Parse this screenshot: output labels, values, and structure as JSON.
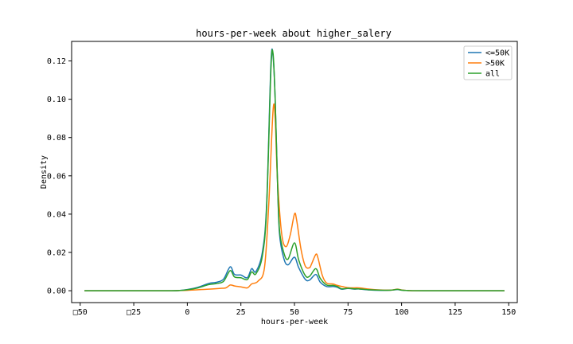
{
  "chart_data": {
    "type": "line",
    "title": "hours-per-week about higher_salery",
    "xlabel": "hours-per-week",
    "ylabel": "Density",
    "xlim": [
      -54,
      154
    ],
    "ylim": [
      -0.0062,
      0.1302
    ],
    "x_ticks": [
      -50,
      -25,
      0,
      25,
      50,
      75,
      100,
      125,
      150
    ],
    "x_tick_labels": [
      "□50",
      "□25",
      "0",
      "25",
      "50",
      "75",
      "100",
      "125",
      "150"
    ],
    "y_ticks": [
      0.0,
      0.02,
      0.04,
      0.06,
      0.08,
      0.1,
      0.12
    ],
    "y_tick_labels": [
      "0.00",
      "0.02",
      "0.04",
      "0.06",
      "0.08",
      "0.10",
      "0.12"
    ],
    "grid": false,
    "legend_position": "top-right",
    "series": [
      {
        "name": "<=50K",
        "color": "#1f77b4",
        "points": [
          [
            -48,
            0
          ],
          [
            -10,
            0
          ],
          [
            -4,
            0.0001
          ],
          [
            0,
            0.0006
          ],
          [
            5,
            0.0018
          ],
          [
            10,
            0.0038
          ],
          [
            14,
            0.0045
          ],
          [
            17,
            0.0062
          ],
          [
            20,
            0.0125
          ],
          [
            22,
            0.0085
          ],
          [
            25,
            0.0082
          ],
          [
            28,
            0.0068
          ],
          [
            30,
            0.0115
          ],
          [
            32,
            0.01
          ],
          [
            35,
            0.02
          ],
          [
            37,
            0.045
          ],
          [
            39,
            0.118
          ],
          [
            40,
            0.1225
          ],
          [
            41,
            0.1
          ],
          [
            42,
            0.06
          ],
          [
            43,
            0.03
          ],
          [
            45,
            0.017
          ],
          [
            47,
            0.0135
          ],
          [
            50,
            0.0175
          ],
          [
            52,
            0.012
          ],
          [
            55,
            0.006
          ],
          [
            57,
            0.0055
          ],
          [
            60,
            0.0085
          ],
          [
            62,
            0.0045
          ],
          [
            65,
            0.0022
          ],
          [
            68,
            0.0022
          ],
          [
            70,
            0.0018
          ],
          [
            72,
            0.0008
          ],
          [
            75,
            0.0012
          ],
          [
            78,
            0.0008
          ],
          [
            80,
            0.0009
          ],
          [
            85,
            0.0004
          ],
          [
            90,
            0.0002
          ],
          [
            95,
            0.0003
          ],
          [
            98,
            0.0006
          ],
          [
            100,
            0.0003
          ],
          [
            103,
            0.0001
          ],
          [
            110,
            0
          ],
          [
            148,
            0
          ]
        ]
      },
      {
        "name": ">50K",
        "color": "#ff7f0e",
        "points": [
          [
            -48,
            0
          ],
          [
            -10,
            0
          ],
          [
            -4,
            0.0001
          ],
          [
            0,
            0.0002
          ],
          [
            5,
            0.0005
          ],
          [
            10,
            0.0008
          ],
          [
            15,
            0.0012
          ],
          [
            18,
            0.0015
          ],
          [
            20,
            0.003
          ],
          [
            22,
            0.0025
          ],
          [
            25,
            0.002
          ],
          [
            28,
            0.0015
          ],
          [
            30,
            0.0035
          ],
          [
            33,
            0.005
          ],
          [
            36,
            0.012
          ],
          [
            38,
            0.045
          ],
          [
            40,
            0.094
          ],
          [
            41,
            0.09
          ],
          [
            42,
            0.06
          ],
          [
            44,
            0.03
          ],
          [
            46,
            0.023
          ],
          [
            48,
            0.029
          ],
          [
            50,
            0.04
          ],
          [
            51,
            0.037
          ],
          [
            53,
            0.022
          ],
          [
            55,
            0.013
          ],
          [
            57,
            0.012
          ],
          [
            58,
            0.014
          ],
          [
            60,
            0.019
          ],
          [
            61,
            0.017
          ],
          [
            63,
            0.008
          ],
          [
            65,
            0.004
          ],
          [
            68,
            0.0035
          ],
          [
            70,
            0.0028
          ],
          [
            73,
            0.002
          ],
          [
            76,
            0.0015
          ],
          [
            80,
            0.0015
          ],
          [
            85,
            0.0008
          ],
          [
            90,
            0.0004
          ],
          [
            95,
            0.0003
          ],
          [
            98,
            0.0008
          ],
          [
            100,
            0.0004
          ],
          [
            103,
            0.0001
          ],
          [
            110,
            0
          ],
          [
            148,
            0
          ]
        ]
      },
      {
        "name": "all",
        "color": "#2ca02c",
        "points": [
          [
            -48,
            0
          ],
          [
            -10,
            0
          ],
          [
            -4,
            0.0001
          ],
          [
            0,
            0.0005
          ],
          [
            5,
            0.0015
          ],
          [
            10,
            0.0032
          ],
          [
            14,
            0.0038
          ],
          [
            17,
            0.005
          ],
          [
            20,
            0.0105
          ],
          [
            22,
            0.0072
          ],
          [
            25,
            0.0068
          ],
          [
            28,
            0.0058
          ],
          [
            30,
            0.0098
          ],
          [
            32,
            0.0088
          ],
          [
            35,
            0.018
          ],
          [
            37,
            0.043
          ],
          [
            39,
            0.115
          ],
          [
            40,
            0.124
          ],
          [
            41,
            0.1
          ],
          [
            42,
            0.06
          ],
          [
            43,
            0.032
          ],
          [
            45,
            0.02
          ],
          [
            47,
            0.0165
          ],
          [
            50,
            0.025
          ],
          [
            52,
            0.016
          ],
          [
            55,
            0.008
          ],
          [
            57,
            0.0075
          ],
          [
            60,
            0.0115
          ],
          [
            62,
            0.0065
          ],
          [
            65,
            0.003
          ],
          [
            68,
            0.0028
          ],
          [
            70,
            0.0022
          ],
          [
            72,
            0.001
          ],
          [
            75,
            0.0013
          ],
          [
            78,
            0.001
          ],
          [
            80,
            0.001
          ],
          [
            85,
            0.0005
          ],
          [
            90,
            0.0003
          ],
          [
            95,
            0.0003
          ],
          [
            98,
            0.0007
          ],
          [
            100,
            0.0003
          ],
          [
            103,
            0.0001
          ],
          [
            110,
            0
          ],
          [
            148,
            0
          ]
        ]
      }
    ]
  }
}
